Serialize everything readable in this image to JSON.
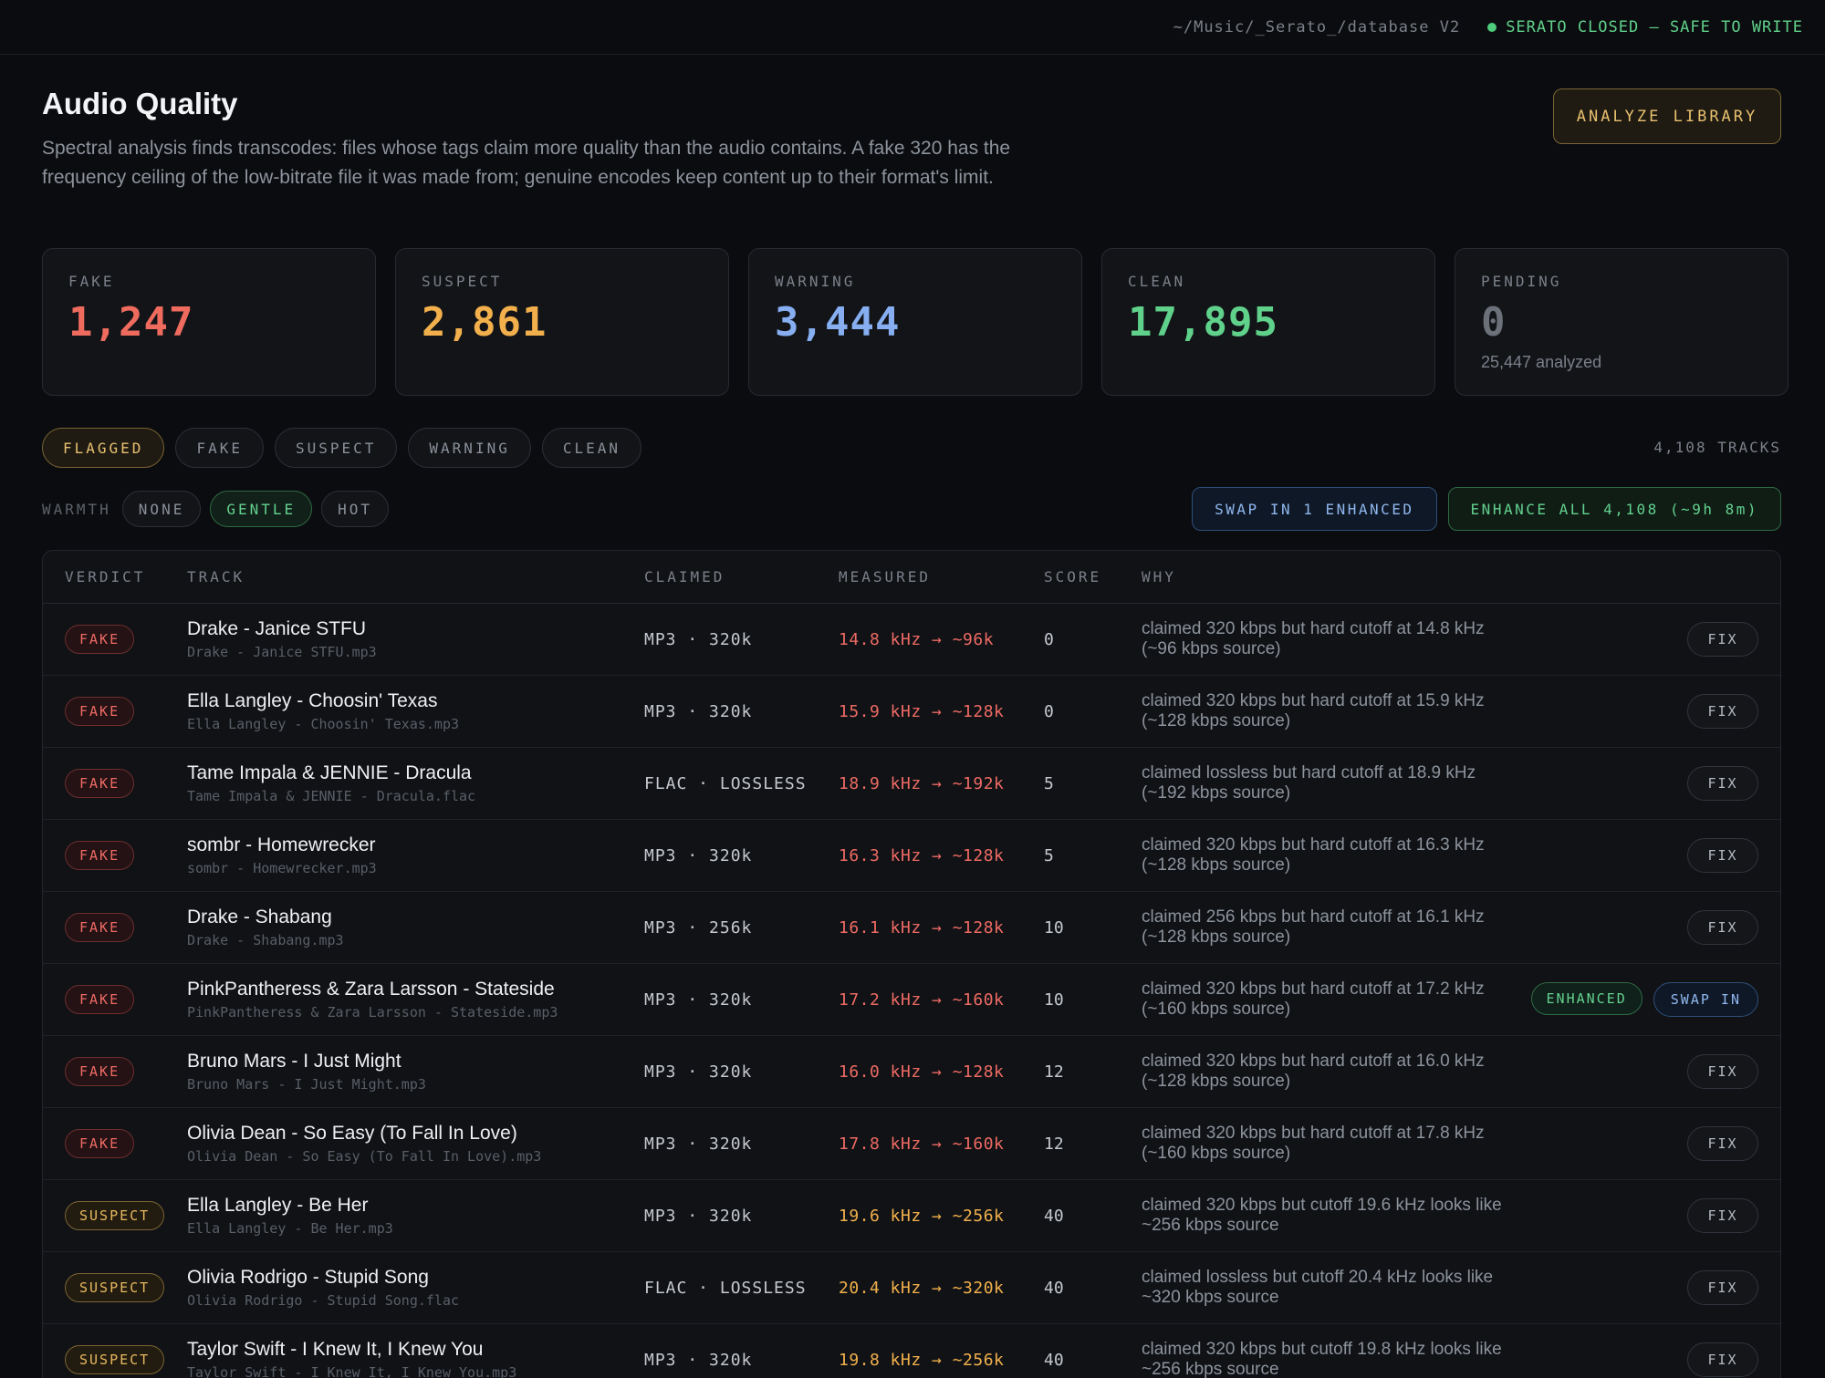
{
  "topbar": {
    "path": "~/Music/_Serato_/database V2",
    "status": "SERATO CLOSED — SAFE TO WRITE",
    "status_color": "#4ecb7c"
  },
  "header": {
    "title": "Audio Quality",
    "description": "Spectral analysis finds transcodes: files whose tags claim more quality than the audio contains. A fake 320 has the frequency ceiling of the low-bitrate file it was made from; genuine encodes keep content up to their format's limit.",
    "analyze_label": "ANALYZE LIBRARY"
  },
  "stats": [
    {
      "label": "FAKE",
      "value": "1,247",
      "color": "#ef6b5e",
      "sub": ""
    },
    {
      "label": "SUSPECT",
      "value": "2,861",
      "color": "#f2b04c",
      "sub": ""
    },
    {
      "label": "WARNING",
      "value": "3,444",
      "color": "#86aef0",
      "sub": ""
    },
    {
      "label": "CLEAN",
      "value": "17,895",
      "color": "#5fd18a",
      "sub": ""
    },
    {
      "label": "PENDING",
      "value": "0",
      "color": "#6b7079",
      "sub": "25,447 analyzed"
    }
  ],
  "filters": {
    "items": [
      "FLAGGED",
      "FAKE",
      "SUSPECT",
      "WARNING",
      "CLEAN"
    ],
    "active": "FLAGGED",
    "count_label": "4,108 TRACKS"
  },
  "warmth": {
    "label": "WARMTH",
    "options": [
      "NONE",
      "GENTLE",
      "HOT"
    ],
    "active": "GENTLE"
  },
  "actions": {
    "swap_label": "SWAP IN 1 ENHANCED",
    "enhance_label": "ENHANCE ALL 4,108 (~9h 8m)"
  },
  "table": {
    "headers": {
      "verdict": "VERDICT",
      "track": "TRACK",
      "claimed": "CLAIMED",
      "measured": "MEASURED",
      "score": "SCORE",
      "why": "WHY"
    },
    "fix_label": "FIX",
    "enhanced_label": "ENHANCED",
    "swap_in_label": "SWAP IN",
    "rows": [
      {
        "verdict": "FAKE",
        "name": "Drake - Janice STFU",
        "file": "Drake - Janice STFU.mp3",
        "claimed": "MP3 · 320k",
        "measured": "14.8 kHz → ~96k",
        "score": "0",
        "why": "claimed 320 kbps but hard cutoff at 14.8 kHz (~96 kbps source)",
        "enhanced": false
      },
      {
        "verdict": "FAKE",
        "name": "Ella Langley - Choosin' Texas",
        "file": "Ella Langley - Choosin' Texas.mp3",
        "claimed": "MP3 · 320k",
        "measured": "15.9 kHz → ~128k",
        "score": "0",
        "why": "claimed 320 kbps but hard cutoff at 15.9 kHz (~128 kbps source)",
        "enhanced": false
      },
      {
        "verdict": "FAKE",
        "name": "Tame Impala & JENNIE - Dracula",
        "file": "Tame Impala & JENNIE - Dracula.flac",
        "claimed": "FLAC · LOSSLESS",
        "measured": "18.9 kHz → ~192k",
        "score": "5",
        "why": "claimed lossless but hard cutoff at 18.9 kHz (~192 kbps source)",
        "enhanced": false
      },
      {
        "verdict": "FAKE",
        "name": "sombr - Homewrecker",
        "file": "sombr - Homewrecker.mp3",
        "claimed": "MP3 · 320k",
        "measured": "16.3 kHz → ~128k",
        "score": "5",
        "why": "claimed 320 kbps but hard cutoff at 16.3 kHz (~128 kbps source)",
        "enhanced": false
      },
      {
        "verdict": "FAKE",
        "name": "Drake - Shabang",
        "file": "Drake - Shabang.mp3",
        "claimed": "MP3 · 256k",
        "measured": "16.1 kHz → ~128k",
        "score": "10",
        "why": "claimed 256 kbps but hard cutoff at 16.1 kHz (~128 kbps source)",
        "enhanced": false
      },
      {
        "verdict": "FAKE",
        "name": "PinkPantheress & Zara Larsson - Stateside",
        "file": "PinkPantheress & Zara Larsson - Stateside.mp3",
        "claimed": "MP3 · 320k",
        "measured": "17.2 kHz → ~160k",
        "score": "10",
        "why": "claimed 320 kbps but hard cutoff at 17.2 kHz (~160 kbps source)",
        "enhanced": true
      },
      {
        "verdict": "FAKE",
        "name": "Bruno Mars - I Just Might",
        "file": "Bruno Mars - I Just Might.mp3",
        "claimed": "MP3 · 320k",
        "measured": "16.0 kHz → ~128k",
        "score": "12",
        "why": "claimed 320 kbps but hard cutoff at 16.0 kHz (~128 kbps source)",
        "enhanced": false
      },
      {
        "verdict": "FAKE",
        "name": "Olivia Dean - So Easy (To Fall In Love)",
        "file": "Olivia Dean - So Easy (To Fall In Love).mp3",
        "claimed": "MP3 · 320k",
        "measured": "17.8 kHz → ~160k",
        "score": "12",
        "why": "claimed 320 kbps but hard cutoff at 17.8 kHz (~160 kbps source)",
        "enhanced": false
      },
      {
        "verdict": "SUSPECT",
        "name": "Ella Langley - Be Her",
        "file": "Ella Langley - Be Her.mp3",
        "claimed": "MP3 · 320k",
        "measured": "19.6 kHz → ~256k",
        "score": "40",
        "why": "claimed 320 kbps but cutoff 19.6 kHz looks like ~256 kbps source",
        "enhanced": false
      },
      {
        "verdict": "SUSPECT",
        "name": "Olivia Rodrigo - Stupid Song",
        "file": "Olivia Rodrigo - Stupid Song.flac",
        "claimed": "FLAC · LOSSLESS",
        "measured": "20.4 kHz → ~320k",
        "score": "40",
        "why": "claimed lossless but cutoff 20.4 kHz looks like ~320 kbps source",
        "enhanced": false
      },
      {
        "verdict": "SUSPECT",
        "name": "Taylor Swift - I Knew It, I Knew You",
        "file": "Taylor Swift - I Knew It, I Knew You.mp3",
        "claimed": "MP3 · 320k",
        "measured": "19.8 kHz → ~256k",
        "score": "40",
        "why": "claimed 320 kbps but cutoff 19.8 kHz looks like ~256 kbps source",
        "enhanced": false
      }
    ]
  },
  "colors": {
    "fake": "#ee6a63",
    "suspect": "#f2b04c"
  }
}
